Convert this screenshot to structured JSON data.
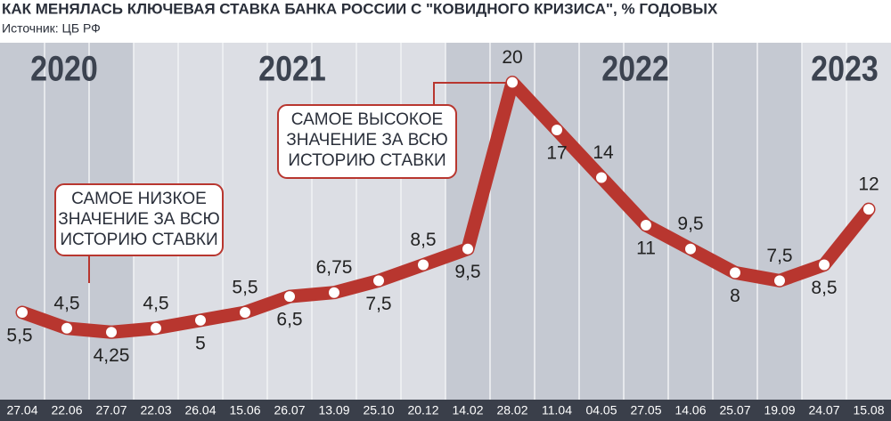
{
  "chart_data": {
    "type": "line",
    "title": "КАК МЕНЯЛАСЬ КЛЮЧЕВАЯ СТАВКА БАНКА РОССИИ С \"КОВИДНОГО КРИЗИСА\", % ГОДОВЫХ",
    "subtitle": "Источник: ЦБ РФ",
    "years": [
      "2020",
      "2021",
      "2022",
      "2023"
    ],
    "categories": [
      "27.04",
      "22.06",
      "27.07",
      "22.03",
      "26.04",
      "15.06",
      "26.07",
      "13.09",
      "25.10",
      "20.12",
      "14.02",
      "28.02",
      "11.04",
      "04.05",
      "27.05",
      "14.06",
      "25.07",
      "19.09",
      "24.07",
      "15.08"
    ],
    "series": [
      {
        "name": "Ключевая ставка",
        "color": "#b8362f",
        "values": [
          5.5,
          4.5,
          4.25,
          4.5,
          5,
          5.5,
          6.5,
          6.75,
          7.5,
          8.5,
          9.5,
          20,
          17,
          14,
          11,
          9.5,
          8,
          7.5,
          8.5,
          12
        ],
        "value_labels": [
          "5,5",
          "4,5",
          "4,25",
          "4,5",
          "5",
          "5,5",
          "6,5",
          "6,75",
          "7,5",
          "8,5",
          "9,5",
          "20",
          "17",
          "14",
          "11",
          "9,5",
          "8",
          "7,5",
          "8,5",
          "12"
        ]
      }
    ],
    "annotations": [
      {
        "lines": [
          "САМОЕ НИЗКОЕ",
          "ЗНАЧЕНИЕ ЗА ВСЮ",
          "ИСТОРИЮ СТАВКИ"
        ]
      },
      {
        "lines": [
          "САМОЕ ВЫСОКОЕ",
          "ЗНАЧЕНИЕ ЗА ВСЮ",
          "ИСТОРИЮ СТАВКИ"
        ]
      }
    ],
    "ylim": [
      0,
      22.5
    ]
  }
}
